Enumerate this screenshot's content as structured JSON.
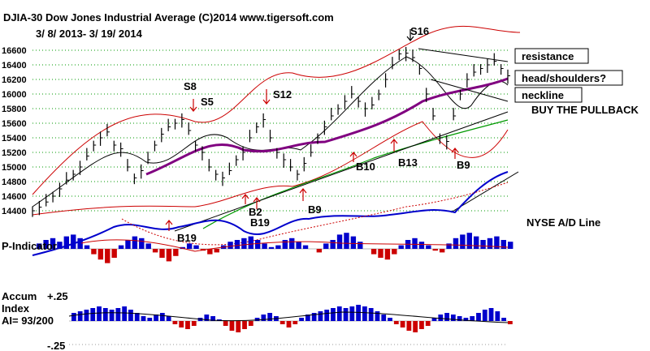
{
  "chart_data": {
    "type": "line",
    "title": "DJIA-30  Dow Jones Industrial Average   (C)2014 www.tigersoft.com",
    "subtitle": "3/ 8/ 2013- 3/ 19/ 2014",
    "price_axis": {
      "ticks": [
        "16600",
        "16400",
        "16200",
        "16000",
        "15800",
        "15600",
        "15400",
        "15200",
        "15000",
        "14800",
        "14600",
        "14400"
      ],
      "ylim": [
        14300,
        16800
      ],
      "grid": true
    },
    "price_series": {
      "name": "",
      "x_start": "2013-03-08",
      "x_end": "2014-03-19",
      "values": [
        14400,
        14450,
        14520,
        14600,
        14700,
        14820,
        14900,
        15000,
        15150,
        15300,
        15400,
        15480,
        15300,
        15250,
        15000,
        14850,
        14950,
        15100,
        15300,
        15450,
        15550,
        15600,
        15650,
        15500,
        15300,
        15200,
        15000,
        14900,
        14850,
        14950,
        15100,
        15200,
        15400,
        15550,
        15650,
        15400,
        15200,
        15100,
        15000,
        14900,
        15050,
        15200,
        15400,
        15550,
        15700,
        15800,
        15900,
        16000,
        15900,
        15800,
        15850,
        16000,
        16200,
        16400,
        16550,
        16560,
        16500,
        16350,
        16000,
        15700,
        15400,
        15350,
        15700,
        16000,
        16200,
        16300,
        16350,
        16400,
        16450,
        16350,
        16250
      ]
    },
    "signals": [
      {
        "label": "S5"
      },
      {
        "label": "S8"
      },
      {
        "label": "S12"
      },
      {
        "label": "S16"
      },
      {
        "label": "B19"
      },
      {
        "label": "B2"
      },
      {
        "label": "B19"
      },
      {
        "label": "B9"
      },
      {
        "label": "B10"
      },
      {
        "label": "B13"
      },
      {
        "label": "B9"
      }
    ],
    "annotations": {
      "resistance": "resistance",
      "head_shoulders": "head/shoulders?",
      "neckline": "neckline",
      "buy_pullback": "BUY THE PULLBACK",
      "nyse_ad": "NYSE A/D Line"
    },
    "indicators": {
      "p_indicator": {
        "label": "P-Indicator",
        "values": [
          0.3,
          0.5,
          0.6,
          0.4,
          0.7,
          0.8,
          0.6,
          0.2,
          -0.3,
          -0.6,
          -0.8,
          -0.5,
          0.2,
          0.5,
          0.7,
          0.6,
          0.3,
          -0.2,
          -0.5,
          -0.7,
          -0.4,
          0.1,
          0.3,
          0.2,
          -0.1,
          -0.3,
          -0.2,
          0.2,
          0.4,
          0.5,
          0.6,
          0.7,
          0.5,
          0.3,
          0.1,
          0.2,
          0.5,
          0.6,
          0.4,
          0.2,
          0,
          -0.2,
          0.3,
          0.5,
          0.8,
          0.9,
          0.7,
          0.4,
          0,
          -0.3,
          -0.5,
          -0.6,
          -0.3,
          0.2,
          0.5,
          0.6,
          0.4,
          0.2,
          -0.1,
          -0.2,
          0.3,
          0.6,
          0.8,
          0.9,
          0.7,
          0.5,
          0.6,
          0.7,
          0.5,
          0.4
        ]
      },
      "accum_index": {
        "label_line1": "Accum",
        "label_line2": "Index",
        "label_line3": "AI= 93/200",
        "top_tick": "+.25",
        "bottom_tick": "-.25",
        "values": [
          0.5,
          0.6,
          0.7,
          0.8,
          0.9,
          0.8,
          0.7,
          0.8,
          0.9,
          0.7,
          0.5,
          0.3,
          0.2,
          0.4,
          0.5,
          0.3,
          -0.2,
          -0.4,
          -0.5,
          -0.3,
          0.2,
          0.4,
          0.3,
          0.1,
          -0.3,
          -0.6,
          -0.7,
          -0.5,
          -0.3,
          0.2,
          0.4,
          0.5,
          0.3,
          -0.2,
          -0.4,
          -0.2,
          0.2,
          0.4,
          0.5,
          0.6,
          0.7,
          0.8,
          0.9,
          0.8,
          0.9,
          1.0,
          0.9,
          0.8,
          0.6,
          0.4,
          0.2,
          -0.2,
          -0.4,
          -0.6,
          -0.7,
          -0.5,
          -0.3,
          0.2,
          0.4,
          0.5,
          0.4,
          0.3,
          0.2,
          0.3,
          0.5,
          0.7,
          0.8,
          0.6,
          0.2,
          -0.2
        ]
      }
    }
  }
}
